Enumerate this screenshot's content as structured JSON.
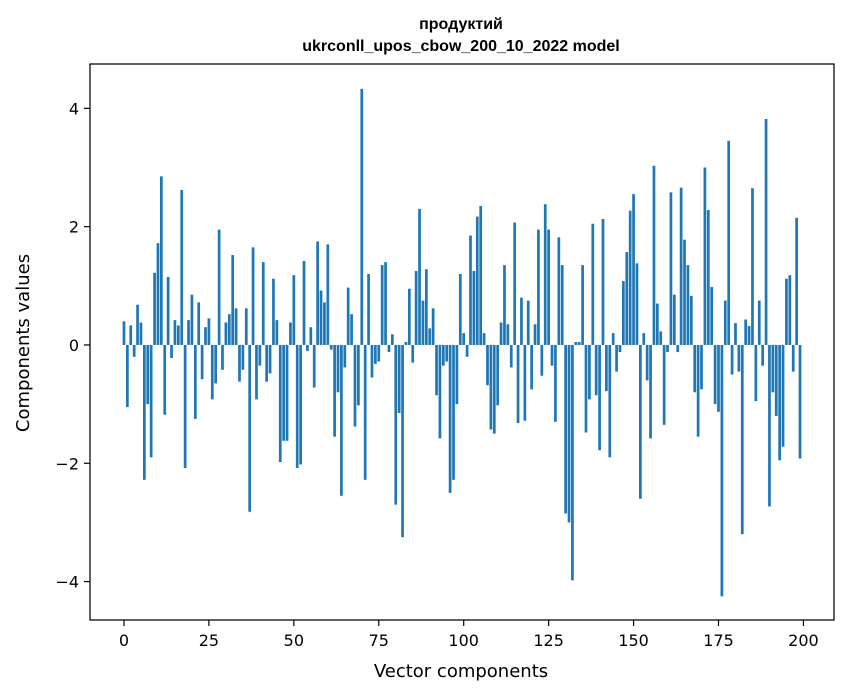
{
  "chart_data": {
    "type": "bar",
    "title_line1": "продуктий",
    "title_line2": "ukrconll_upos_cbow_200_10_2022 model",
    "xlabel": "Vector components",
    "ylabel": "Components values",
    "xlim": [
      -10,
      209
    ],
    "ylim": [
      -4.65,
      4.75
    ],
    "xticks": [
      0,
      25,
      50,
      75,
      100,
      125,
      150,
      175,
      200
    ],
    "xtick_labels": [
      "0",
      "25",
      "50",
      "75",
      "100",
      "125",
      "150",
      "175",
      "200"
    ],
    "yticks": [
      -4,
      -2,
      0,
      2,
      4
    ],
    "ytick_labels": [
      "−4",
      "−2",
      "0",
      "2",
      "4"
    ],
    "grid": false,
    "color": "#1f77b4",
    "x": [
      0,
      1,
      2,
      3,
      4,
      5,
      6,
      7,
      8,
      9,
      10,
      11,
      12,
      13,
      14,
      15,
      16,
      17,
      18,
      19,
      20,
      21,
      22,
      23,
      24,
      25,
      26,
      27,
      28,
      29,
      30,
      31,
      32,
      33,
      34,
      35,
      36,
      37,
      38,
      39,
      40,
      41,
      42,
      43,
      44,
      45,
      46,
      47,
      48,
      49,
      50,
      51,
      52,
      53,
      54,
      55,
      56,
      57,
      58,
      59,
      60,
      61,
      62,
      63,
      64,
      65,
      66,
      67,
      68,
      69,
      70,
      71,
      72,
      73,
      74,
      75,
      76,
      77,
      78,
      79,
      80,
      81,
      82,
      83,
      84,
      85,
      86,
      87,
      88,
      89,
      90,
      91,
      92,
      93,
      94,
      95,
      96,
      97,
      98,
      99,
      100,
      101,
      102,
      103,
      104,
      105,
      106,
      107,
      108,
      109,
      110,
      111,
      112,
      113,
      114,
      115,
      116,
      117,
      118,
      119,
      120,
      121,
      122,
      123,
      124,
      125,
      126,
      127,
      128,
      129,
      130,
      131,
      132,
      133,
      134,
      135,
      136,
      137,
      138,
      139,
      140,
      141,
      142,
      143,
      144,
      145,
      146,
      147,
      148,
      149,
      150,
      151,
      152,
      153,
      154,
      155,
      156,
      157,
      158,
      159,
      160,
      161,
      162,
      163,
      164,
      165,
      166,
      167,
      168,
      169,
      170,
      171,
      172,
      173,
      174,
      175,
      176,
      177,
      178,
      179,
      180,
      181,
      182,
      183,
      184,
      185,
      186,
      187,
      188,
      189,
      190,
      191,
      192,
      193,
      194,
      195,
      196,
      197,
      198,
      199
    ],
    "values": [
      0.4,
      -1.05,
      0.33,
      -0.2,
      0.68,
      0.38,
      -2.28,
      -1.0,
      -1.9,
      1.22,
      1.72,
      2.85,
      -1.18,
      1.15,
      -0.22,
      0.42,
      0.33,
      2.62,
      -2.08,
      0.42,
      0.85,
      -1.25,
      0.72,
      -0.58,
      0.3,
      0.45,
      -0.92,
      -0.65,
      1.95,
      -0.42,
      0.38,
      0.52,
      1.52,
      0.62,
      -0.62,
      -0.42,
      0.62,
      -2.82,
      1.65,
      -0.92,
      -0.35,
      1.4,
      -0.62,
      -0.48,
      1.12,
      0.42,
      -1.98,
      -1.62,
      -1.62,
      0.38,
      1.18,
      -2.08,
      -2.02,
      1.42,
      -0.1,
      0.3,
      -0.72,
      1.75,
      0.92,
      0.72,
      1.7,
      -0.08,
      -1.55,
      -0.8,
      -2.55,
      -0.38,
      0.97,
      0.52,
      -1.38,
      -1.02,
      4.33,
      -2.28,
      1.2,
      -0.55,
      -0.32,
      -0.28,
      1.35,
      1.4,
      -0.12,
      0.18,
      -2.7,
      -1.15,
      -3.25,
      0.05,
      0.95,
      -0.3,
      1.25,
      2.3,
      0.75,
      1.28,
      0.28,
      0.62,
      -0.85,
      -1.58,
      -0.35,
      -0.28,
      -2.5,
      -2.28,
      -1.0,
      1.2,
      0.2,
      -0.2,
      1.85,
      1.25,
      2.17,
      2.35,
      0.2,
      -0.68,
      -1.43,
      -1.5,
      -1.02,
      0.38,
      1.35,
      0.35,
      -0.38,
      2.07,
      -1.32,
      0.8,
      -1.28,
      0.75,
      -0.75,
      0.35,
      1.95,
      -0.52,
      2.38,
      1.95,
      -0.35,
      -1.3,
      1.82,
      1.35,
      -2.85,
      -3.0,
      -3.98,
      0.05,
      0.05,
      1.35,
      -1.48,
      -0.92,
      2.05,
      -0.85,
      -1.78,
      2.13,
      -0.78,
      -1.9,
      0.2,
      -0.45,
      -0.12,
      1.08,
      1.57,
      2.27,
      2.55,
      1.38,
      -2.6,
      0.2,
      -0.6,
      -1.58,
      3.03,
      0.7,
      0.23,
      -1.35,
      -0.12,
      2.58,
      0.85,
      -0.12,
      2.66,
      1.78,
      1.35,
      0.83,
      -0.8,
      -1.55,
      -0.75,
      3.0,
      2.28,
      0.98,
      -1.0,
      -1.13,
      -4.25,
      0.75,
      3.45,
      -0.5,
      0.37,
      -0.45,
      -3.2,
      0.43,
      0.32,
      2.65,
      -0.95,
      0.75,
      -0.35,
      3.82,
      -2.73,
      -0.8,
      -1.2,
      -1.95,
      -1.72,
      1.12,
      1.18,
      -0.45,
      2.15,
      -1.92
    ]
  }
}
